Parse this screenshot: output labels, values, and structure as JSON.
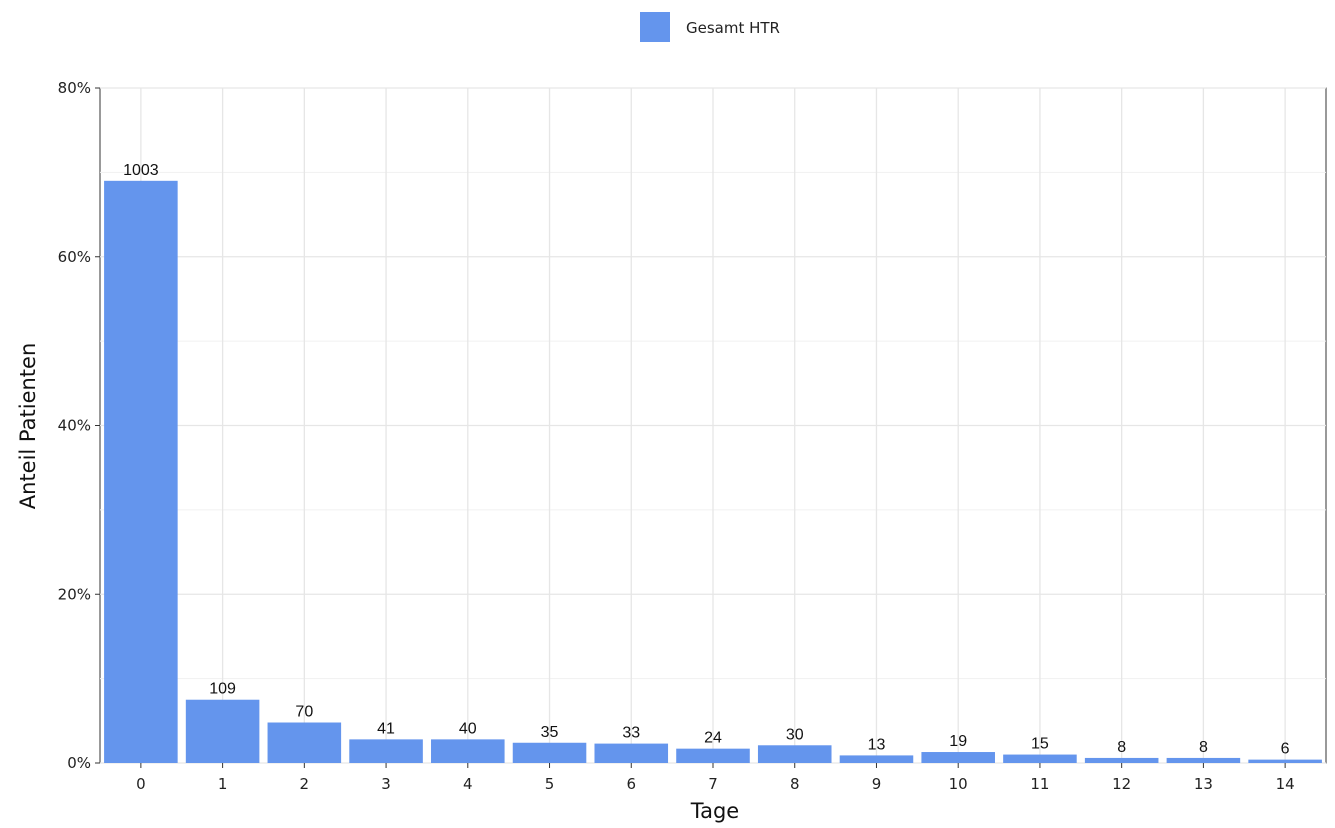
{
  "chart_data": {
    "type": "bar",
    "title": "",
    "xlabel": "Tage",
    "ylabel": "Anteil Patienten",
    "ylim": [
      0,
      0.8
    ],
    "yticks": [
      "0%",
      "20%",
      "40%",
      "60%",
      "80%"
    ],
    "ytick_values": [
      0,
      0.2,
      0.4,
      0.6,
      0.8
    ],
    "grid": true,
    "legend_position": "top-center",
    "series": [
      {
        "name": "Gesamt HTR",
        "color": "#6495ED",
        "categories": [
          "0",
          "1",
          "2",
          "3",
          "4",
          "5",
          "6",
          "7",
          "8",
          "9",
          "10",
          "11",
          "12",
          "13",
          "14"
        ],
        "values": [
          0.69,
          0.075,
          0.048,
          0.028,
          0.028,
          0.024,
          0.023,
          0.017,
          0.021,
          0.009,
          0.013,
          0.01,
          0.006,
          0.006,
          0.004
        ],
        "labels": [
          "1003",
          "109",
          "70",
          "41",
          "40",
          "35",
          "33",
          "24",
          "30",
          "13",
          "19",
          "15",
          "8",
          "8",
          "6"
        ]
      }
    ]
  }
}
